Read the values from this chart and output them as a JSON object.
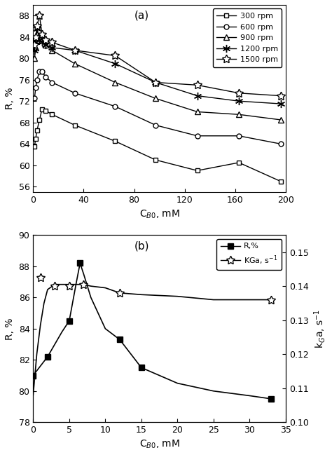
{
  "subplot_a": {
    "label": "(a)",
    "xlabel": "C$_{B0}$, mM",
    "ylabel": "R, %",
    "xlim": [
      0,
      200
    ],
    "ylim": [
      55,
      90
    ],
    "yticks": [
      56,
      60,
      64,
      68,
      72,
      76,
      80,
      84,
      88
    ],
    "xticks": [
      0,
      40,
      80,
      120,
      160,
      200
    ],
    "series": [
      {
        "label": "300 rpm",
        "marker": "s",
        "x": [
          1,
          2,
          3,
          5,
          7,
          10,
          15,
          33,
          65,
          97,
          130,
          163,
          196
        ],
        "y": [
          63.5,
          65.0,
          66.5,
          68.5,
          70.5,
          70.2,
          69.5,
          67.5,
          64.5,
          61.0,
          59.0,
          60.5,
          57.0
        ]
      },
      {
        "label": "600 rpm",
        "marker": "o",
        "x": [
          1,
          2,
          3,
          5,
          7,
          10,
          15,
          33,
          65,
          97,
          130,
          163,
          196
        ],
        "y": [
          72.5,
          74.5,
          76.0,
          77.5,
          77.5,
          76.5,
          75.5,
          73.5,
          71.0,
          67.5,
          65.5,
          65.5,
          64.0
        ]
      },
      {
        "label": "900 rpm",
        "marker": "^",
        "x": [
          1,
          2,
          3,
          5,
          7,
          10,
          15,
          33,
          65,
          97,
          130,
          163,
          196
        ],
        "y": [
          80.0,
          82.0,
          83.5,
          84.0,
          83.5,
          82.5,
          81.5,
          79.0,
          75.5,
          72.5,
          70.0,
          69.5,
          68.5
        ]
      },
      {
        "label": "1200 rpm",
        "marker": "x_star",
        "x": [
          1,
          2,
          3,
          5,
          7,
          10,
          15,
          33,
          65,
          97,
          130,
          163,
          196
        ],
        "y": [
          81.5,
          83.0,
          85.5,
          83.5,
          83.0,
          82.5,
          82.0,
          81.5,
          79.0,
          75.5,
          73.0,
          72.0,
          71.5
        ]
      },
      {
        "label": "1500 rpm",
        "marker": "open_star",
        "x": [
          1,
          2,
          3,
          5,
          7,
          10,
          15,
          33,
          65,
          97,
          130,
          163,
          196
        ],
        "y": [
          82.5,
          84.0,
          86.0,
          88.0,
          84.5,
          83.5,
          83.0,
          81.5,
          80.5,
          75.5,
          75.0,
          73.5,
          73.0
        ]
      }
    ]
  },
  "subplot_b": {
    "label": "(b)",
    "xlabel": "C$_{B0}$, mM",
    "ylabel": "R, %",
    "ylabel2": "k$_{G}$a, s$^{-1}$",
    "xlim": [
      0,
      35
    ],
    "ylim": [
      78,
      90
    ],
    "ylim2": [
      0.1,
      0.155
    ],
    "yticks": [
      78,
      80,
      82,
      84,
      86,
      88,
      90
    ],
    "yticks2": [
      0.1,
      0.11,
      0.12,
      0.13,
      0.14,
      0.15
    ],
    "xticks": [
      0,
      5,
      10,
      15,
      20,
      25,
      30,
      35
    ],
    "R_x": [
      0,
      2,
      5,
      6.5,
      12,
      15,
      33
    ],
    "R_y": [
      81.0,
      82.2,
      84.5,
      88.2,
      83.3,
      81.5,
      79.5
    ],
    "R_curve_x": [
      0,
      1,
      2,
      3,
      4,
      5,
      6,
      6.5,
      7,
      8,
      10,
      12,
      15,
      20,
      25,
      30,
      33
    ],
    "R_curve_y": [
      81.0,
      81.6,
      82.2,
      83.0,
      83.8,
      84.5,
      87.0,
      88.2,
      87.5,
      86.0,
      84.0,
      83.3,
      81.5,
      80.5,
      80.0,
      79.7,
      79.5
    ],
    "KGa_x": [
      1,
      3,
      5,
      7,
      12,
      33
    ],
    "KGa_y2": [
      0.1425,
      0.14,
      0.14,
      0.1405,
      0.138,
      0.136
    ],
    "KGa_curve_x": [
      0,
      0.5,
      1,
      1.5,
      2,
      3,
      4,
      5,
      6,
      7,
      8,
      10,
      12,
      15,
      20,
      25,
      30,
      33
    ],
    "KGa_curve_y2": [
      0.108,
      0.12,
      0.1285,
      0.135,
      0.139,
      0.1405,
      0.1405,
      0.1405,
      0.1405,
      0.1405,
      0.14,
      0.1395,
      0.138,
      0.1375,
      0.137,
      0.136,
      0.136,
      0.136
    ]
  }
}
